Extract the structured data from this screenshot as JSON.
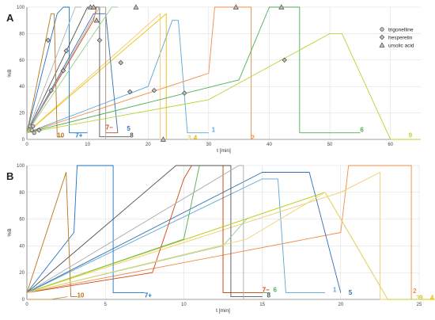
{
  "chart_data": [
    {
      "type": "line",
      "panel_label": "A",
      "xlabel": "t [min]",
      "ylabel": "%B",
      "xlim": [
        0,
        65
      ],
      "ylim": [
        0,
        100
      ],
      "xticks": [
        0,
        10,
        20,
        30,
        40,
        50,
        60
      ],
      "yticks": [
        0,
        20,
        40,
        60,
        80,
        100
      ],
      "grid": true,
      "legend_position": "right",
      "legend": [
        {
          "marker": "circle",
          "label": "trigonelline"
        },
        {
          "marker": "diamond",
          "label": "hesperetin"
        },
        {
          "marker": "triangle",
          "label": "ursolic acid"
        }
      ],
      "series": [
        {
          "name": "1",
          "color": "#5aa7d8",
          "label_x": 30.5,
          "label_y": 5,
          "points": [
            [
              0,
              5
            ],
            [
              20,
              40
            ],
            [
              24,
              90
            ],
            [
              25,
              90
            ],
            [
              26.5,
              5
            ],
            [
              30,
              5
            ]
          ]
        },
        {
          "name": "2",
          "color": "#f08c4a",
          "label_x": 37,
          "label_y": -1,
          "points": [
            [
              0,
              5
            ],
            [
              30,
              50
            ],
            [
              31,
              100
            ],
            [
              37,
              100
            ],
            [
              37,
              0
            ]
          ]
        },
        {
          "name": "3",
          "color": "#f5c96b",
          "label_x": 26.5,
          "label_y": -1,
          "points": [
            [
              0,
              5
            ],
            [
              22,
              95
            ],
            [
              22,
              0
            ]
          ]
        },
        {
          "name": "4",
          "color": "#e6c000",
          "label_x": 27.5,
          "label_y": -1,
          "points": [
            [
              0,
              5
            ],
            [
              23,
              95
            ],
            [
              23,
              0
            ]
          ]
        },
        {
          "name": "5",
          "color": "#2f6fb3",
          "label_x": 16.5,
          "label_y": 6,
          "points": [
            [
              0,
              5
            ],
            [
              11,
              95
            ],
            [
              13,
              95
            ],
            [
              15,
              5
            ]
          ]
        },
        {
          "name": "6",
          "color": "#4caf50",
          "label_x": 55,
          "label_y": 5,
          "points": [
            [
              0,
              5
            ],
            [
              35,
              45
            ],
            [
              40,
              100
            ],
            [
              45,
              100
            ],
            [
              45,
              5
            ],
            [
              55,
              5
            ]
          ]
        },
        {
          "name": "7+",
          "color": "#1a73c8",
          "label_x": 8,
          "label_y": 1,
          "points": [
            [
              0,
              5
            ],
            [
              5,
              95
            ],
            [
              6,
              100
            ],
            [
              7,
              100
            ],
            [
              7,
              5
            ],
            [
              10,
              5
            ]
          ]
        },
        {
          "name": "7−",
          "color": "#d84315",
          "label_x": 13,
          "label_y": 7,
          "points": [
            [
              0,
              5
            ],
            [
              11,
              90
            ],
            [
              11.5,
              100
            ],
            [
              13,
              100
            ],
            [
              13,
              5
            ],
            [
              15,
              5
            ]
          ]
        },
        {
          "name": "8",
          "color": "#555555",
          "label_x": 17,
          "label_y": 1,
          "points": [
            [
              0,
              5
            ],
            [
              10,
              100
            ],
            [
              12,
              100
            ],
            [
              12,
              2
            ],
            [
              17,
              2
            ]
          ]
        },
        {
          "name": "9",
          "color": "#b8d430",
          "label_x": 63,
          "label_y": 1,
          "points": [
            [
              0,
              5
            ],
            [
              30,
              30
            ],
            [
              50,
              80
            ],
            [
              52,
              80
            ],
            [
              60,
              0
            ],
            [
              65,
              0
            ]
          ]
        },
        {
          "name": "10",
          "color": "#b8741a",
          "label_x": 5,
          "label_y": 1,
          "points": [
            [
              0,
              5
            ],
            [
              4,
              95
            ],
            [
              4.5,
              95
            ],
            [
              5,
              2
            ],
            [
              6,
              2
            ]
          ]
        },
        {
          "name": "",
          "color": "#aaaaaa",
          "points": [
            [
              0,
              5
            ],
            [
              12,
              100
            ],
            [
              13,
              100
            ],
            [
              13,
              0
            ]
          ]
        },
        {
          "name": "",
          "color": "#8fd18f",
          "points": [
            [
              0,
              5
            ],
            [
              14,
              100
            ],
            [
              15,
              100
            ]
          ]
        },
        {
          "name": "",
          "color": "#b0b0b0",
          "points": [
            [
              0,
              5
            ],
            [
              8,
              100
            ],
            [
              9,
              100
            ]
          ]
        }
      ],
      "markers": [
        {
          "type": "circle",
          "points": [
            [
              0.5,
              10
            ],
            [
              0.8,
              7
            ],
            [
              1.0,
              10
            ],
            [
              1.2,
              5
            ]
          ]
        },
        {
          "type": "diamond",
          "points": [
            [
              2.0,
              7
            ],
            [
              3.5,
              75
            ],
            [
              4.0,
              37
            ],
            [
              6.0,
              52
            ],
            [
              6.5,
              67
            ],
            [
              12.0,
              75
            ],
            [
              15.5,
              58
            ],
            [
              17.0,
              36
            ],
            [
              21.0,
              37
            ],
            [
              26.0,
              35
            ],
            [
              42.5,
              60
            ]
          ]
        },
        {
          "type": "triangle",
          "points": [
            [
              10.5,
              100
            ],
            [
              11.0,
              100
            ],
            [
              11.5,
              90
            ],
            [
              18.0,
              100
            ],
            [
              22.5,
              0
            ],
            [
              34.5,
              100
            ],
            [
              42.0,
              100
            ]
          ]
        }
      ]
    },
    {
      "type": "line",
      "panel_label": "B",
      "xlabel": "t [min]",
      "ylabel": "%B",
      "xlim": [
        0,
        25
      ],
      "ylim": [
        0,
        100
      ],
      "xticks": [
        0,
        5,
        10,
        15,
        20,
        25
      ],
      "yticks": [
        0,
        20,
        40,
        60,
        80,
        100
      ],
      "grid": true,
      "series": [
        {
          "name": "1",
          "color": "#5aa7d8",
          "label_x": 19.5,
          "label_y": 5,
          "points": [
            [
              0,
              5
            ],
            [
              15,
              90
            ],
            [
              16,
              90
            ],
            [
              16.5,
              5
            ],
            [
              19,
              5
            ]
          ]
        },
        {
          "name": "2",
          "color": "#f08c4a",
          "label_x": 24.6,
          "label_y": 4,
          "points": [
            [
              0,
              5
            ],
            [
              20,
              50
            ],
            [
              20.5,
              100
            ],
            [
              24.5,
              100
            ],
            [
              24.5,
              0
            ]
          ]
        },
        {
          "name": "3",
          "color": "#f5c96b",
          "label_x": 24.8,
          "label_y": -1,
          "points": [
            [
              0,
              5
            ],
            [
              20,
              80
            ],
            [
              22.5,
              95
            ],
            [
              22.5,
              0
            ],
            [
              24.5,
              0
            ]
          ]
        },
        {
          "name": "4",
          "color": "#e6c000",
          "label_x": 26,
          "label_y": -1,
          "points": [
            [
              0,
              5
            ],
            [
              19,
              80
            ],
            [
              23,
              0
            ],
            [
              26,
              0
            ]
          ]
        },
        {
          "name": "5",
          "color": "#2f6fb3",
          "label_x": 20.5,
          "label_y": 3,
          "points": [
            [
              0,
              5
            ],
            [
              15,
              95
            ],
            [
              18,
              95
            ],
            [
              20,
              5
            ]
          ]
        },
        {
          "name": "6",
          "color": "#4caf50",
          "label_x": 15.7,
          "label_y": 5,
          "points": [
            [
              0,
              5
            ],
            [
              10,
              45
            ],
            [
              11,
              100
            ],
            [
              12.5,
              100
            ],
            [
              12.5,
              5
            ],
            [
              15.5,
              5
            ]
          ]
        },
        {
          "name": "7+",
          "color": "#1a73c8",
          "label_x": 7.5,
          "label_y": 1,
          "points": [
            [
              0,
              5
            ],
            [
              3,
              50
            ],
            [
              3.2,
              100
            ],
            [
              5.5,
              100
            ],
            [
              5.5,
              5
            ],
            [
              7.5,
              5
            ]
          ]
        },
        {
          "name": "7−",
          "color": "#d84315",
          "label_x": 15,
          "label_y": 5,
          "points": [
            [
              0,
              5
            ],
            [
              8,
              20
            ],
            [
              10,
              90
            ],
            [
              10.5,
              100
            ],
            [
              12.5,
              100
            ],
            [
              12.5,
              5
            ],
            [
              15,
              5
            ]
          ]
        },
        {
          "name": "8",
          "color": "#555555",
          "label_x": 15.3,
          "label_y": 1,
          "points": [
            [
              0,
              5
            ],
            [
              9.5,
              100
            ],
            [
              13,
              100
            ],
            [
              13,
              2
            ],
            [
              15,
              2
            ]
          ]
        },
        {
          "name": "9",
          "color": "#b8d430",
          "label_x": 25,
          "label_y": -1,
          "points": [
            [
              0,
              5
            ],
            [
              19,
              80
            ],
            [
              23,
              0
            ],
            [
              25,
              0
            ]
          ]
        },
        {
          "name": "10",
          "color": "#b8741a",
          "label_x": 3.2,
          "label_y": 1,
          "points": [
            [
              0,
              5
            ],
            [
              2.5,
              95
            ],
            [
              2.8,
              2
            ],
            [
              3.2,
              2
            ]
          ]
        },
        {
          "name": "",
          "color": "#aaaaaa",
          "points": [
            [
              0,
              5
            ],
            [
              13.5,
              100
            ],
            [
              13.8,
              100
            ],
            [
              13.8,
              0
            ]
          ]
        },
        {
          "name": "",
          "color": "#8fd18f",
          "points": [
            [
              0,
              5
            ],
            [
              12.5,
              40
            ],
            [
              14,
              60
            ]
          ]
        },
        {
          "name": "",
          "color": "#e8d87a",
          "points": [
            [
              0,
              5
            ],
            [
              14,
              45
            ],
            [
              19,
              80
            ],
            [
              23,
              0
            ]
          ]
        },
        {
          "name": "",
          "color": "#c79a4a",
          "points": [
            [
              0,
              0
            ],
            [
              1.5,
              0
            ],
            [
              2.6,
              2
            ]
          ]
        }
      ],
      "markers": []
    }
  ]
}
